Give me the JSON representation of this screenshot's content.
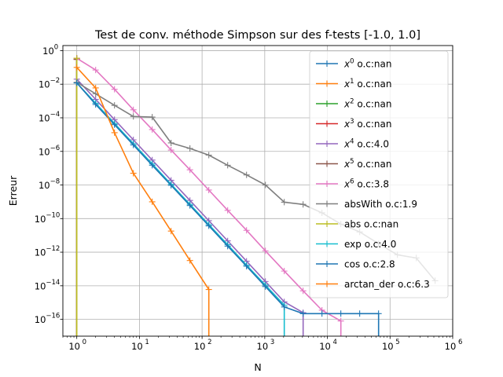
{
  "chart_data": {
    "type": "line",
    "title": "Test de conv. méthode Simpson sur des f-tests [-1.0, 1.0]",
    "xlabel": "N",
    "ylabel": "Erreur",
    "xscale": "log",
    "yscale": "log",
    "xlim": [
      0.6,
      1000000
    ],
    "ylim": [
      1e-17,
      2
    ],
    "grid": true,
    "legend_position": "top-right",
    "x_ticks": [
      {
        "value": 1,
        "base": "10",
        "exp": "0"
      },
      {
        "value": 10,
        "base": "10",
        "exp": "1"
      },
      {
        "value": 100,
        "base": "10",
        "exp": "2"
      },
      {
        "value": 1000,
        "base": "10",
        "exp": "3"
      },
      {
        "value": 10000,
        "base": "10",
        "exp": "4"
      },
      {
        "value": 100000,
        "base": "10",
        "exp": "5"
      },
      {
        "value": 1000000,
        "base": "10",
        "exp": "6"
      }
    ],
    "y_ticks": [
      {
        "value": 1,
        "base": "10",
        "exp": "0"
      },
      {
        "value": 0.01,
        "base": "10",
        "exp": "−2"
      },
      {
        "value": 0.0001,
        "base": "10",
        "exp": "−4"
      },
      {
        "value": 1e-06,
        "base": "10",
        "exp": "−6"
      },
      {
        "value": 1e-08,
        "base": "10",
        "exp": "−8"
      },
      {
        "value": 1e-10,
        "base": "10",
        "exp": "−10"
      },
      {
        "value": 1e-12,
        "base": "10",
        "exp": "−12"
      },
      {
        "value": 1e-14,
        "base": "10",
        "exp": "−14"
      },
      {
        "value": 1e-16,
        "base": "10",
        "exp": "−16"
      }
    ],
    "series": [
      {
        "name": "x^0 o.c:nan",
        "label_base": "x",
        "label_sup": "0",
        "label_rest": " o.c:nan",
        "color": "#1f77b4",
        "x": [
          1,
          1
        ],
        "y": [
          0.35,
          1e-18
        ]
      },
      {
        "name": "x^1 o.c:nan",
        "label_base": "x",
        "label_sup": "1",
        "label_rest": " o.c:nan",
        "color": "#ff7f0e",
        "x": [
          1,
          1
        ],
        "y": [
          0.35,
          1e-18
        ]
      },
      {
        "name": "x^2 o.c:nan",
        "label_base": "x",
        "label_sup": "2",
        "label_rest": " o.c:nan",
        "color": "#2ca02c",
        "x": [
          1,
          1
        ],
        "y": [
          0.3,
          1e-18
        ]
      },
      {
        "name": "x^3 o.c:nan",
        "label_base": "x",
        "label_sup": "3",
        "label_rest": " o.c:nan",
        "color": "#d62728",
        "x": [
          1,
          1
        ],
        "y": [
          0.3,
          1e-18
        ]
      },
      {
        "name": "x^4 o.c:4.0",
        "label_base": "x",
        "label_sup": "4",
        "label_rest": " o.c:4.0",
        "color": "#9467bd",
        "x": [
          1,
          2,
          4,
          8,
          16,
          32,
          64,
          128,
          256,
          512,
          1024,
          2048,
          4096,
          4096
        ],
        "y": [
          0.02,
          0.00125,
          7.8e-05,
          4.9e-06,
          3.05e-07,
          1.9e-08,
          1.2e-09,
          7.5e-11,
          4.7e-12,
          2.9e-13,
          1.8e-14,
          1.1e-15,
          2.5e-16,
          1e-18
        ]
      },
      {
        "name": "x^5 o.c:nan",
        "label_base": "x",
        "label_sup": "5",
        "label_rest": " o.c:nan",
        "color": "#8c564b",
        "x": [
          1,
          1
        ],
        "y": [
          0.3,
          1e-18
        ]
      },
      {
        "name": "x^6 o.c:3.8",
        "label_base": "x",
        "label_sup": "6",
        "label_rest": " o.c:3.8",
        "color": "#e377c2",
        "x": [
          1,
          2,
          4,
          8,
          16,
          32,
          64,
          128,
          256,
          512,
          1024,
          2048,
          4096,
          8192,
          16384,
          16384
        ],
        "y": [
          0.35,
          0.07,
          0.005,
          0.0003,
          2e-05,
          1.2e-06,
          8e-08,
          5e-09,
          3.1e-10,
          2e-11,
          1.2e-12,
          7.5e-14,
          5e-15,
          3.5e-16,
          8e-17,
          1e-18
        ]
      },
      {
        "name": "absWith o.c:1.9",
        "label_base": "absWith o.c:1.9",
        "label_sup": "",
        "label_rest": "",
        "color": "#7f7f7f",
        "x": [
          1,
          2,
          4,
          8,
          16,
          32,
          64,
          128,
          256,
          512,
          1024,
          2048,
          4096,
          8192,
          16384,
          32768,
          65536,
          131072,
          262144,
          524288
        ],
        "y": [
          0.013,
          0.0027,
          0.00055,
          0.00012,
          0.00011,
          3.2e-06,
          1.5e-06,
          6e-07,
          1.5e-07,
          4e-08,
          1e-08,
          9.5e-10,
          7e-10,
          2.2e-10,
          4.7e-11,
          1.6e-11,
          3.2e-12,
          7e-13,
          4.5e-13,
          2e-14
        ]
      },
      {
        "name": "abs o.c:nan",
        "label_base": "abs o.c:nan",
        "label_sup": "",
        "label_rest": "",
        "color": "#bcbd22",
        "x": [
          1,
          1
        ],
        "y": [
          0.35,
          1e-18
        ]
      },
      {
        "name": "exp o.c:4.0",
        "label_base": "exp o.c:4.0",
        "label_sup": "",
        "label_rest": "",
        "color": "#17becf",
        "x": [
          1,
          2,
          4,
          8,
          16,
          32,
          64,
          128,
          256,
          512,
          1024,
          2048,
          2048
        ],
        "y": [
          0.012,
          0.00074,
          4.6e-05,
          2.9e-06,
          1.8e-07,
          1.1e-08,
          7e-10,
          4.4e-11,
          2.8e-12,
          1.7e-13,
          1.1e-14,
          7e-16,
          1e-18
        ]
      },
      {
        "name": "cos o.c:2.8",
        "label_base": "cos o.c:2.8",
        "label_sup": "",
        "label_rest": "",
        "color": "#1f77b4",
        "x": [
          1,
          2,
          4,
          8,
          16,
          32,
          64,
          128,
          256,
          512,
          1024,
          2048,
          4096,
          8192,
          16384,
          32768,
          65536,
          65536
        ],
        "y": [
          0.012,
          0.00062,
          3.9e-05,
          2.4e-06,
          1.5e-07,
          9.5e-09,
          6e-10,
          3.7e-11,
          2.3e-12,
          1.45e-13,
          9e-15,
          5.5e-16,
          2.2e-16,
          2.2e-16,
          2.2e-16,
          2.2e-16,
          2.2e-16,
          1e-18
        ]
      },
      {
        "name": "arctan_der o.c:6.3",
        "label_base": "arctan_der o.c:6.3",
        "label_sup": "",
        "label_rest": "",
        "color": "#ff7f0e",
        "x": [
          1,
          2,
          4,
          8,
          16,
          32,
          64,
          128,
          128
        ],
        "y": [
          0.1,
          0.006,
          1.3e-05,
          5e-08,
          1e-09,
          1.8e-11,
          3.2e-13,
          6e-15,
          1e-18
        ]
      }
    ]
  }
}
